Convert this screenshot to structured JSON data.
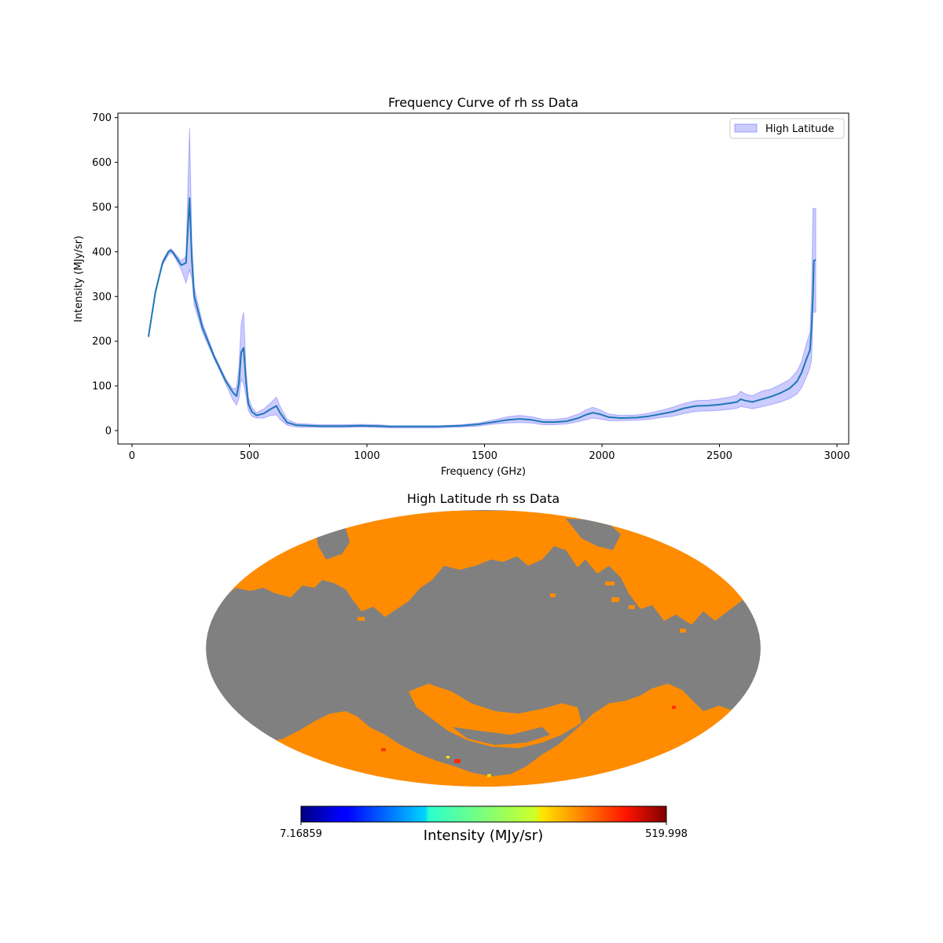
{
  "chart_data": [
    {
      "type": "line",
      "title": "Frequency Curve of rh ss Data",
      "xlabel": "Frequency (GHz)",
      "ylabel": "Intensity (MJy/sr)",
      "xlim": [
        -60,
        3050
      ],
      "ylim": [
        -30,
        710
      ],
      "xticks": [
        0,
        500,
        1000,
        1500,
        2000,
        2500,
        3000
      ],
      "yticks": [
        0,
        100,
        200,
        300,
        400,
        500,
        600,
        700
      ],
      "legend": {
        "label": "High Latitude",
        "position": "upper right"
      },
      "colors": {
        "line": "#1f77b4",
        "band_fill": "#0000ff",
        "band_edge": "#7f7fff"
      },
      "series": {
        "name": "High Latitude",
        "x": [
          70,
          100,
          130,
          155,
          165,
          175,
          185,
          210,
          230,
          245,
          255,
          265,
          300,
          350,
          400,
          430,
          445,
          455,
          465,
          475,
          485,
          495,
          510,
          530,
          560,
          590,
          615,
          630,
          660,
          700,
          800,
          900,
          975,
          1050,
          1100,
          1200,
          1300,
          1400,
          1475,
          1500,
          1550,
          1600,
          1650,
          1700,
          1750,
          1800,
          1850,
          1900,
          1930,
          1960,
          1990,
          2030,
          2080,
          2150,
          2200,
          2250,
          2300,
          2350,
          2400,
          2450,
          2500,
          2550,
          2575,
          2590,
          2610,
          2640,
          2680,
          2720,
          2760,
          2800,
          2830,
          2850,
          2870,
          2885,
          2892,
          2898,
          2902,
          2910
        ],
        "mean": [
          210,
          310,
          375,
          400,
          403,
          398,
          390,
          370,
          375,
          520,
          380,
          300,
          230,
          165,
          110,
          85,
          77,
          105,
          175,
          185,
          110,
          60,
          42,
          34,
          38,
          48,
          55,
          40,
          18,
          12,
          10,
          10,
          11,
          10,
          9,
          9,
          9,
          11,
          14,
          16,
          20,
          24,
          26,
          24,
          19,
          19,
          21,
          28,
          35,
          40,
          37,
          30,
          28,
          29,
          32,
          37,
          42,
          50,
          55,
          56,
          58,
          62,
          64,
          70,
          67,
          64,
          70,
          76,
          84,
          95,
          110,
          130,
          160,
          180,
          230,
          300,
          380,
          382
        ],
        "upper": [
          212,
          313,
          380,
          403,
          407,
          402,
          395,
          380,
          390,
          676,
          420,
          320,
          240,
          170,
          115,
          93,
          96,
          140,
          240,
          265,
          140,
          75,
          52,
          40,
          48,
          62,
          75,
          55,
          25,
          16,
          13,
          13,
          14,
          13,
          11,
          11,
          11,
          13,
          17,
          20,
          25,
          31,
          34,
          31,
          25,
          25,
          28,
          37,
          46,
          52,
          47,
          37,
          34,
          35,
          39,
          45,
          52,
          61,
          67,
          68,
          71,
          76,
          79,
          88,
          82,
          78,
          88,
          93,
          103,
          115,
          133,
          155,
          195,
          220,
          310,
          497,
          497,
          497
        ],
        "lower": [
          208,
          307,
          370,
          393,
          398,
          393,
          385,
          360,
          330,
          360,
          340,
          280,
          220,
          160,
          103,
          68,
          57,
          72,
          115,
          105,
          78,
          45,
          32,
          28,
          28,
          34,
          35,
          25,
          12,
          8,
          7,
          7,
          8,
          7,
          6,
          6,
          6,
          8,
          10,
          12,
          15,
          17,
          18,
          17,
          13,
          13,
          15,
          20,
          24,
          28,
          26,
          22,
          22,
          23,
          25,
          29,
          32,
          38,
          43,
          44,
          45,
          48,
          50,
          54,
          52,
          49,
          53,
          58,
          64,
          72,
          82,
          96,
          120,
          140,
          160,
          265,
          265,
          265
        ]
      }
    },
    {
      "type": "heatmap",
      "projection": "mollweide",
      "title": "High Latitude rh ss Data",
      "colorbar": {
        "label": "Intensity (MJy/sr)",
        "min_label": "7.16859",
        "max_label": "519.998",
        "min": 7.16859,
        "max": 519.998,
        "colormap": "jet"
      },
      "masked_color": "#808080",
      "dominant_color": "#ff8c00",
      "masked_region": "galactic plane |b| < ~30 deg (gray)"
    }
  ]
}
